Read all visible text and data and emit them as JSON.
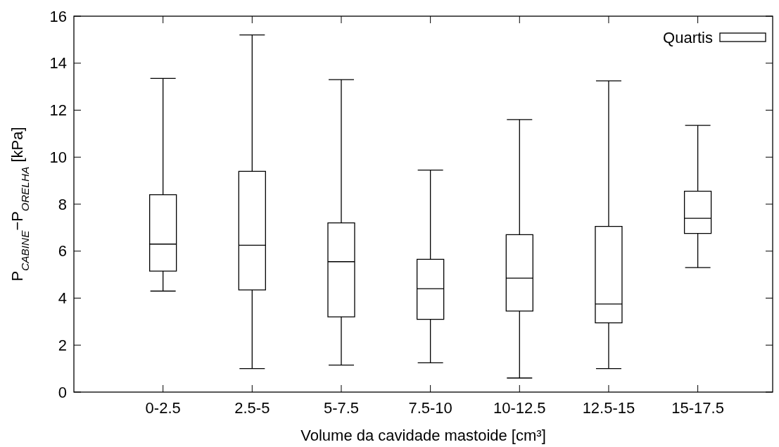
{
  "chart_data": {
    "type": "box",
    "xlabel": "Volume da cavidade mastoide [cm³]",
    "ylabel": "P$_{CABINE}$−P$_{ORELHA}$ [kPa]",
    "categories": [
      "0-2.5",
      "2.5-5",
      "5-7.5",
      "7.5-10",
      "10-12.5",
      "12.5-15",
      "15-17.5"
    ],
    "ylim": [
      0,
      16
    ],
    "yticks": [
      0,
      2,
      4,
      6,
      8,
      10,
      12,
      14,
      16
    ],
    "grid": false,
    "legend": "top right",
    "series": [
      {
        "name": "Quartis",
        "color": "#000000",
        "boxes": [
          {
            "low": 4.3,
            "q1": 5.15,
            "median": 6.3,
            "q3": 8.4,
            "high": 13.35
          },
          {
            "low": 1.0,
            "q1": 4.35,
            "median": 6.25,
            "q3": 9.4,
            "high": 15.2
          },
          {
            "low": 1.15,
            "q1": 3.2,
            "median": 5.55,
            "q3": 7.2,
            "high": 13.3
          },
          {
            "low": 1.25,
            "q1": 3.1,
            "median": 4.4,
            "q3": 5.65,
            "high": 9.45
          },
          {
            "low": 0.6,
            "q1": 3.45,
            "median": 4.85,
            "q3": 6.7,
            "high": 11.6
          },
          {
            "low": 1.0,
            "q1": 2.95,
            "median": 3.75,
            "q3": 7.05,
            "high": 13.25
          },
          {
            "low": 5.3,
            "q1": 6.75,
            "median": 7.4,
            "q3": 8.55,
            "high": 11.35
          }
        ]
      }
    ]
  }
}
